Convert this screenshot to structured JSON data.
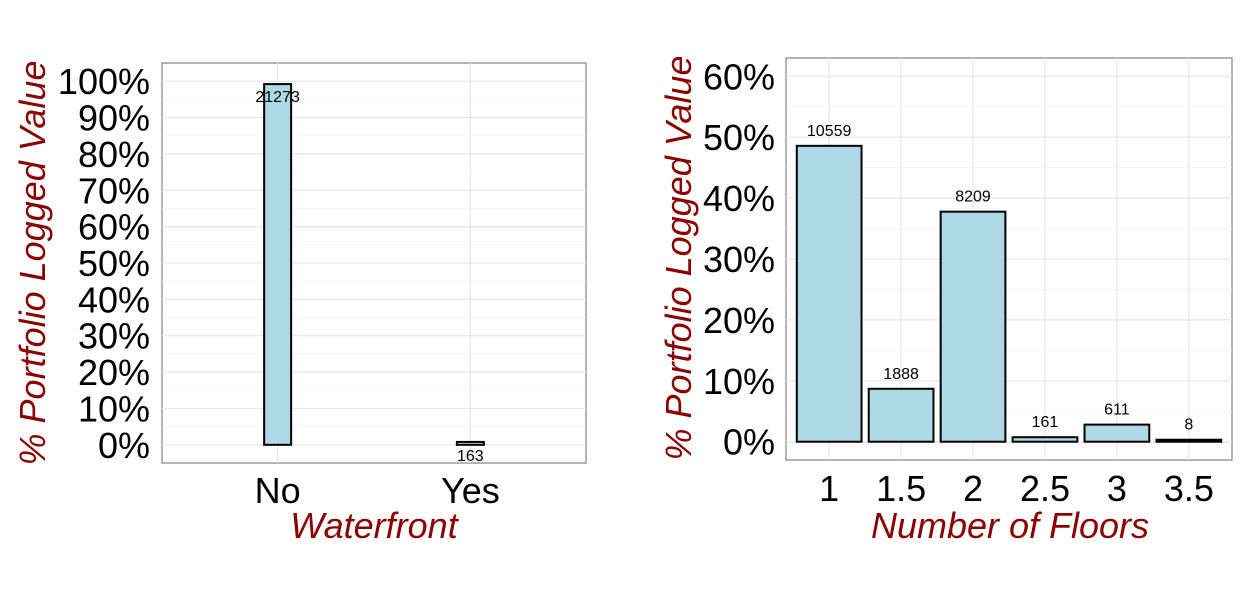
{
  "chart_data": [
    {
      "type": "bar",
      "xlabel": "Waterfront",
      "ylabel": "% Portfolio Logged Value",
      "categories": [
        "No",
        "Yes"
      ],
      "values": [
        0.992,
        0.008
      ],
      "counts": [
        "21273",
        "163"
      ],
      "count_label_position": "inside-top",
      "yticks": [
        "0%",
        "10%",
        "20%",
        "30%",
        "40%",
        "50%",
        "60%",
        "70%",
        "80%",
        "90%",
        "100%"
      ],
      "ylim": [
        -0.05,
        1.05
      ],
      "grid": true,
      "bar_fill": "#add8e6",
      "bar_stroke": "#000000",
      "title_color": "#8b0000"
    },
    {
      "type": "bar",
      "xlabel": "Number of Floors",
      "ylabel": "% Portfolio Logged Value",
      "categories": [
        "1",
        "1.5",
        "2",
        "2.5",
        "3",
        "3.5"
      ],
      "values": [
        0.4858,
        0.0869,
        0.3777,
        0.0074,
        0.0281,
        0.0004
      ],
      "counts": [
        "10559",
        "1888",
        "8209",
        "161",
        "611",
        "8"
      ],
      "count_label_position": "above",
      "yticks": [
        "0%",
        "10%",
        "20%",
        "30%",
        "40%",
        "50%",
        "60%"
      ],
      "ylim": [
        -0.03,
        0.63
      ],
      "grid": true,
      "bar_fill": "#add8e6",
      "bar_stroke": "#000000",
      "title_color": "#8b0000"
    }
  ]
}
